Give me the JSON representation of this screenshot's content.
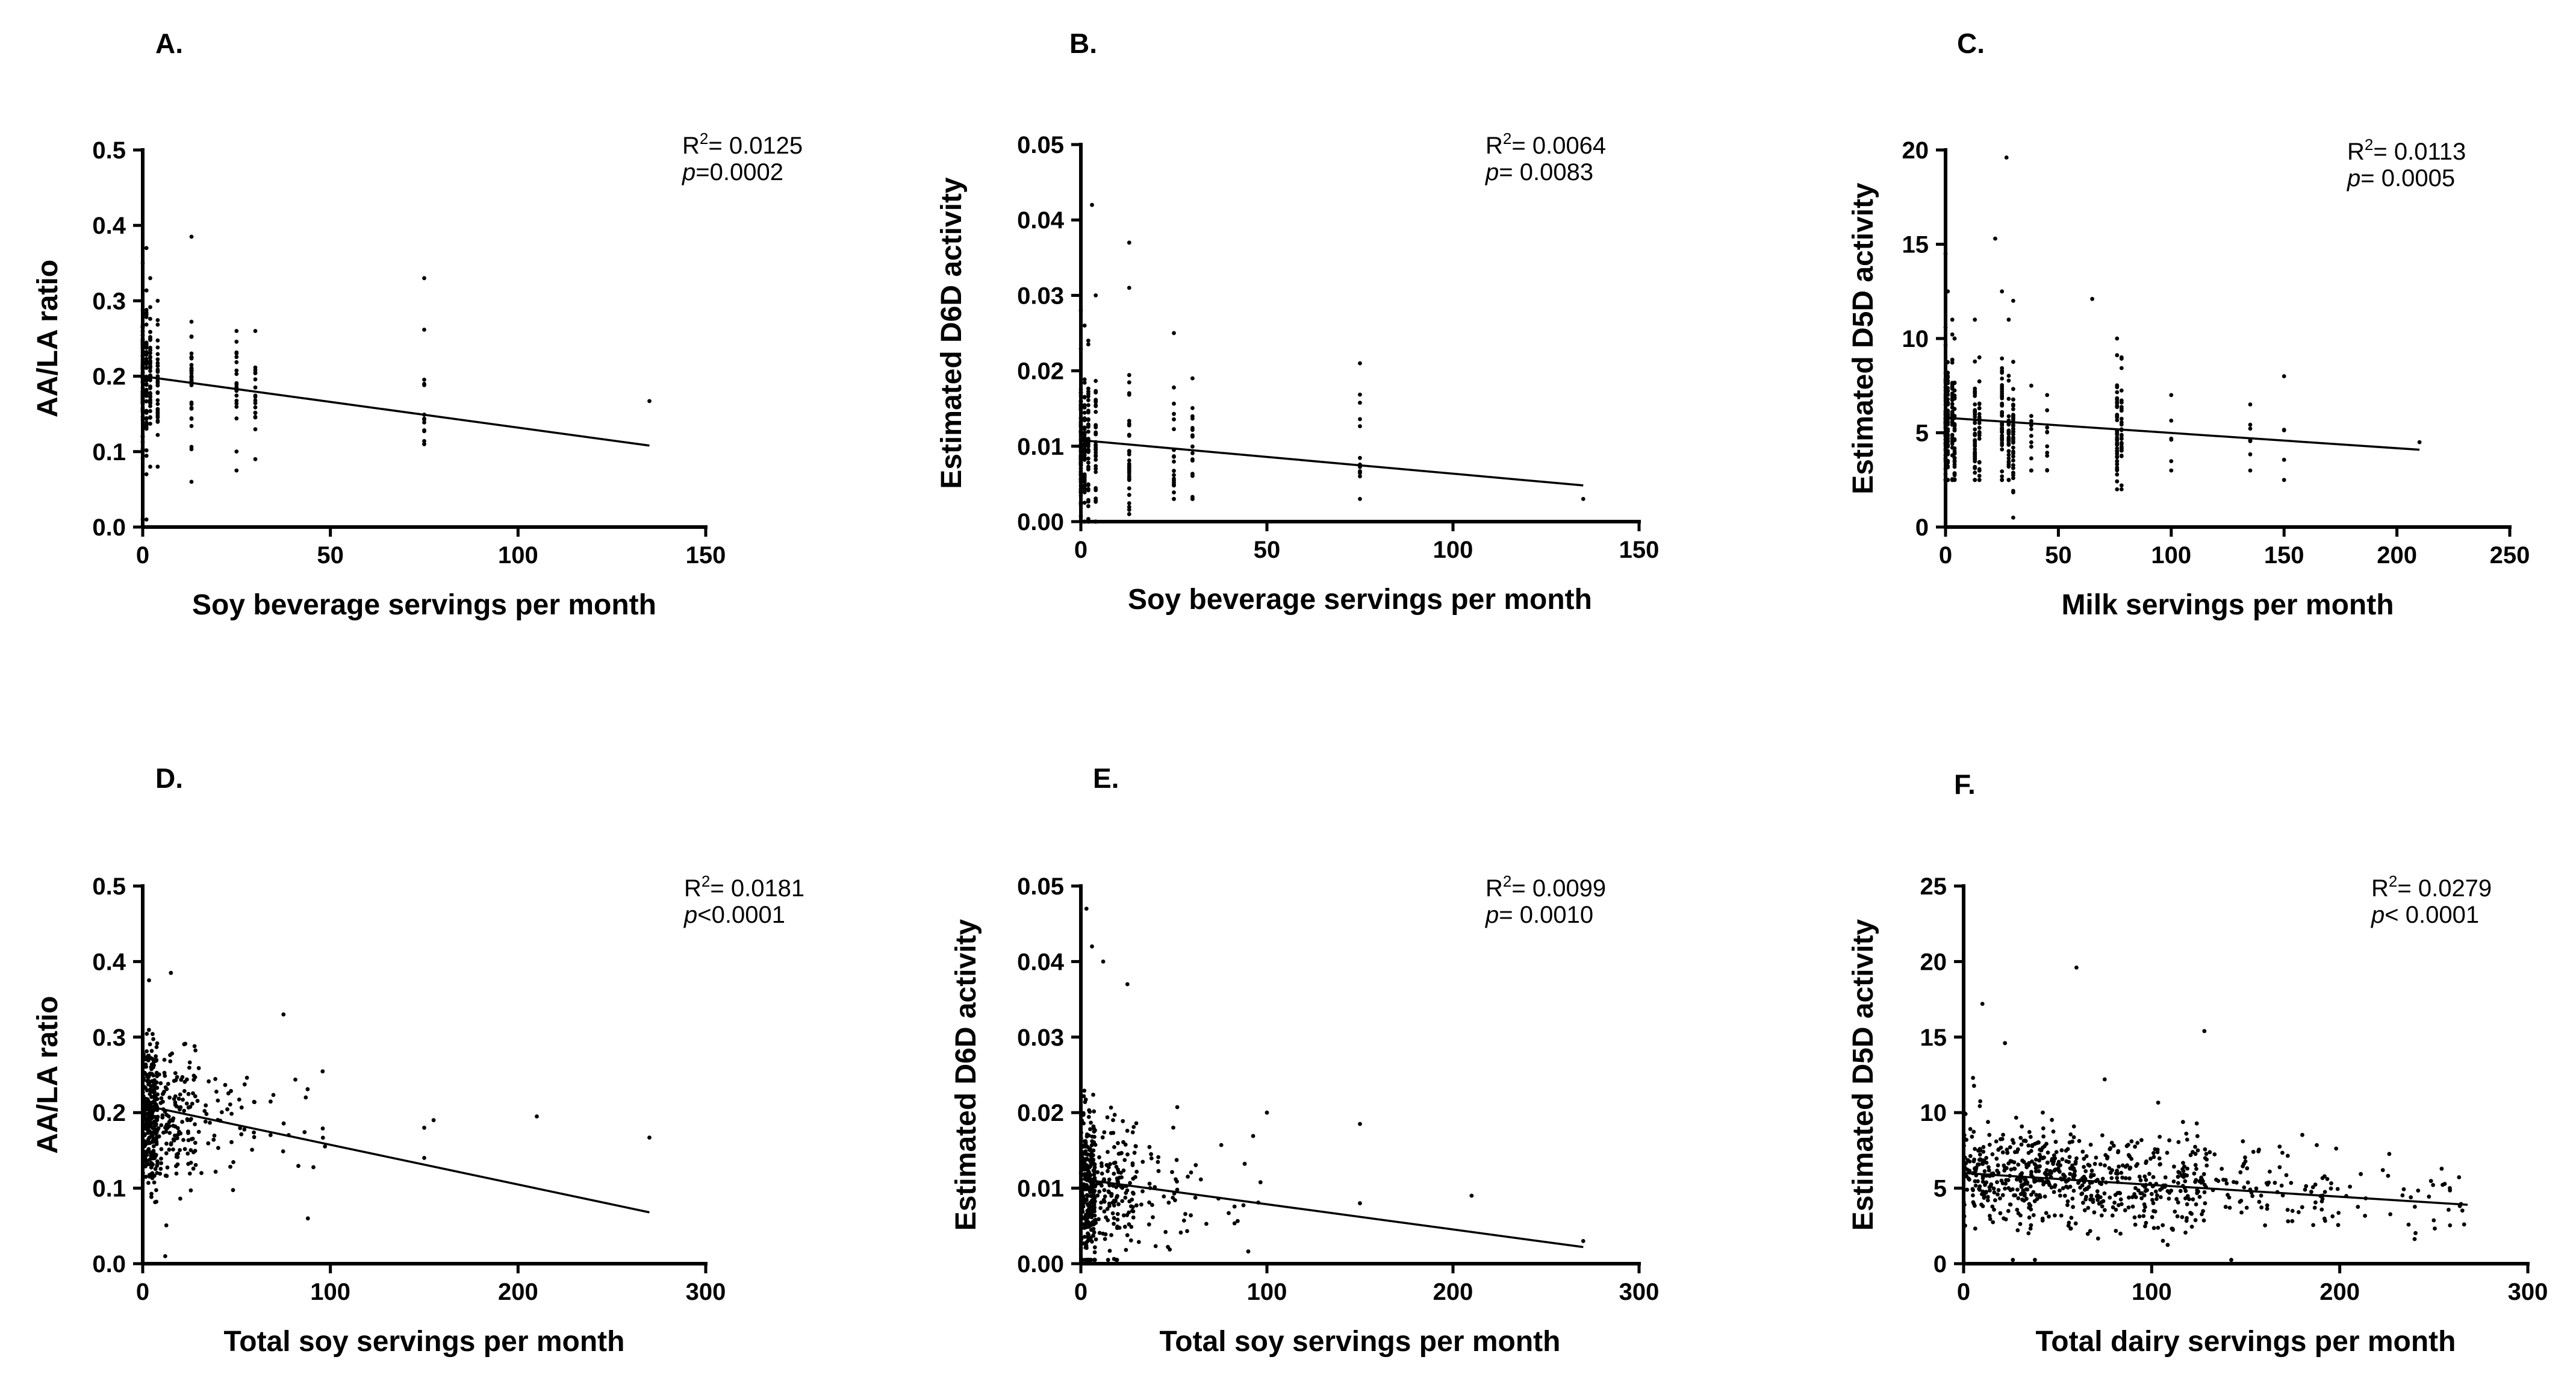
{
  "chart_data": [
    {
      "panel": "A.",
      "type": "scatter",
      "xlabel": "Soy beverage servings per month",
      "ylabel": "AA/LA ratio",
      "xlim": [
        0,
        150
      ],
      "ylim": [
        0,
        0.5
      ],
      "xticks": [
        0,
        50,
        100,
        150
      ],
      "yticks": [
        0.0,
        0.1,
        0.2,
        0.3,
        0.4,
        0.5
      ],
      "xtick_labels": [
        "0",
        "50",
        "100",
        "150"
      ],
      "ytick_labels": [
        "0.0",
        "0.1",
        "0.2",
        "0.3",
        "0.4",
        "0.5"
      ],
      "r2_label": "R",
      "r2_value": "= 0.0125",
      "p_label": "p",
      "p_value": "=0.0002",
      "fit": {
        "x": [
          0,
          135
        ],
        "y": [
          0.2,
          0.108
        ]
      },
      "columns": [
        [
          0,
          0.01,
          0.35,
          0.2,
          0.045,
          80
        ],
        [
          1,
          0.07,
          0.37,
          0.2,
          0.045,
          50
        ],
        [
          2,
          0.08,
          0.33,
          0.2,
          0.045,
          45
        ],
        [
          4,
          0.08,
          0.3,
          0.195,
          0.04,
          40
        ],
        [
          13,
          0.06,
          0.385,
          0.19,
          0.04,
          35
        ],
        [
          25,
          0.075,
          0.26,
          0.185,
          0.035,
          22
        ],
        [
          30,
          0.09,
          0.26,
          0.18,
          0.035,
          18
        ],
        [
          75,
          0.11,
          0.33,
          0.165,
          0.03,
          14
        ]
      ],
      "extra_points": [
        [
          135,
          0.167
        ],
        [
          1,
          0.01
        ]
      ]
    },
    {
      "panel": "B.",
      "type": "scatter",
      "xlabel": "Soy beverage servings per month",
      "ylabel": "Estimated D6D activity",
      "xlim": [
        0,
        150
      ],
      "ylim": [
        0,
        0.05
      ],
      "xticks": [
        0,
        50,
        100,
        150
      ],
      "yticks": [
        0.0,
        0.01,
        0.02,
        0.03,
        0.04,
        0.05
      ],
      "xtick_labels": [
        "0",
        "50",
        "100",
        "150"
      ],
      "ytick_labels": [
        "0.00",
        "0.01",
        "0.02",
        "0.03",
        "0.04",
        "0.05"
      ],
      "r2_label": "R",
      "r2_value": "= 0.0064",
      "p_label": "p",
      "p_value": "= 0.0083",
      "fit": {
        "x": [
          0,
          135
        ],
        "y": [
          0.0108,
          0.0048
        ]
      },
      "columns": [
        [
          0,
          0.0,
          0.028,
          0.01,
          0.005,
          80
        ],
        [
          1,
          0.0,
          0.026,
          0.01,
          0.005,
          50
        ],
        [
          2,
          0.0,
          0.024,
          0.01,
          0.005,
          45
        ],
        [
          4,
          0.0,
          0.03,
          0.01,
          0.005,
          40
        ],
        [
          13,
          0.001,
          0.031,
          0.009,
          0.005,
          35
        ],
        [
          25,
          0.003,
          0.025,
          0.009,
          0.004,
          22
        ],
        [
          30,
          0.003,
          0.019,
          0.009,
          0.004,
          18
        ],
        [
          75,
          0.003,
          0.021,
          0.009,
          0.004,
          14
        ]
      ],
      "extra_points": [
        [
          3,
          0.042
        ],
        [
          13,
          0.037
        ],
        [
          135,
          0.003
        ]
      ]
    },
    {
      "panel": "C.",
      "type": "scatter",
      "xlabel": "Milk servings per month",
      "ylabel": "Estimated D5D activity",
      "xlim": [
        0,
        250
      ],
      "ylim": [
        0,
        20
      ],
      "xticks": [
        0,
        50,
        100,
        150,
        200,
        250
      ],
      "yticks": [
        0,
        5,
        10,
        15,
        20
      ],
      "xtick_labels": [
        "0",
        "50",
        "100",
        "150",
        "200",
        "250"
      ],
      "ytick_labels": [
        "0",
        "5",
        "10",
        "15",
        "20"
      ],
      "r2_label": "R",
      "r2_value": "= 0.0113",
      "p_label": "p",
      "p_value": "= 0.0005",
      "fit": {
        "x": [
          0,
          210
        ],
        "y": [
          5.8,
          4.1
        ]
      },
      "columns": [
        [
          0,
          2.5,
          14.5,
          5.5,
          2.0,
          60
        ],
        [
          1,
          2.5,
          12.5,
          5.5,
          2.0,
          60
        ],
        [
          3,
          2.5,
          11,
          5.5,
          1.8,
          50
        ],
        [
          4,
          2.5,
          10,
          5.4,
          1.8,
          35
        ],
        [
          13,
          2.5,
          11,
          5.3,
          1.8,
          45
        ],
        [
          15,
          2.5,
          9,
          5.2,
          1.6,
          30
        ],
        [
          25,
          2.5,
          12.5,
          5.2,
          1.7,
          45
        ],
        [
          28,
          2.5,
          11,
          5.1,
          1.6,
          35
        ],
        [
          30,
          0.5,
          12,
          5.0,
          1.7,
          40
        ],
        [
          38,
          3,
          7.5,
          5.0,
          1.2,
          12
        ],
        [
          45,
          3,
          7,
          5.0,
          1.2,
          10
        ],
        [
          76,
          2,
          10,
          5.0,
          1.4,
          45
        ],
        [
          78,
          2,
          9,
          5.0,
          1.3,
          30
        ],
        [
          100,
          3,
          7,
          5.0,
          1.0,
          6
        ],
        [
          135,
          3,
          6.5,
          4.5,
          1.0,
          8
        ],
        [
          150,
          2.5,
          8,
          4.5,
          1.2,
          5
        ]
      ],
      "extra_points": [
        [
          27,
          19.6
        ],
        [
          210,
          4.5
        ],
        [
          22,
          15.3
        ],
        [
          65,
          12.1
        ]
      ]
    },
    {
      "panel": "D.",
      "type": "scatter",
      "xlabel": "Total soy servings per month",
      "ylabel": "AA/LA ratio",
      "xlim": [
        0,
        300
      ],
      "ylim": [
        0,
        0.5
      ],
      "xticks": [
        0,
        100,
        200,
        300
      ],
      "yticks": [
        0.0,
        0.1,
        0.2,
        0.3,
        0.4,
        0.5
      ],
      "xtick_labels": [
        "0",
        "100",
        "200",
        "300"
      ],
      "ytick_labels": [
        "0.0",
        "0.1",
        "0.2",
        "0.3",
        "0.4",
        "0.5"
      ],
      "r2_label": "R",
      "r2_value": "= 0.0181",
      "p_label": "p",
      "p_value": "<0.0001",
      "fit": {
        "x": [
          0,
          270
        ],
        "y": [
          0.21,
          0.068
        ]
      },
      "cloud": [
        [
          0,
          8,
          0.2,
          0.045,
          280
        ],
        [
          8,
          30,
          0.19,
          0.045,
          140
        ],
        [
          30,
          60,
          0.18,
          0.04,
          40
        ],
        [
          60,
          100,
          0.17,
          0.04,
          16
        ]
      ],
      "extra_points": [
        [
          150,
          0.18
        ],
        [
          150,
          0.14
        ],
        [
          155,
          0.19
        ],
        [
          210,
          0.195
        ],
        [
          270,
          0.167
        ],
        [
          75,
          0.33
        ],
        [
          88,
          0.06
        ],
        [
          15,
          0.385
        ],
        [
          12,
          0.01
        ]
      ]
    },
    {
      "panel": "E.",
      "type": "scatter",
      "xlabel": "Total soy servings per month",
      "ylabel": "Estimated D6D activity",
      "xlim": [
        0,
        300
      ],
      "ylim": [
        0,
        0.05
      ],
      "xticks": [
        0,
        100,
        200,
        300
      ],
      "yticks": [
        0.0,
        0.01,
        0.02,
        0.03,
        0.04,
        0.05
      ],
      "xtick_labels": [
        "0",
        "100",
        "200",
        "300"
      ],
      "ytick_labels": [
        "0.00",
        "0.01",
        "0.02",
        "0.03",
        "0.04",
        "0.05"
      ],
      "r2_label": "R",
      "r2_value": "= 0.0099",
      "p_label": "p",
      "p_value": "= 0.0010",
      "fit": {
        "x": [
          0,
          270
        ],
        "y": [
          0.0112,
          0.0022
        ]
      },
      "cloud": [
        [
          0,
          8,
          0.0095,
          0.005,
          280
        ],
        [
          8,
          30,
          0.0095,
          0.005,
          140
        ],
        [
          30,
          60,
          0.009,
          0.0045,
          40
        ],
        [
          60,
          100,
          0.009,
          0.004,
          16
        ]
      ],
      "extra_points": [
        [
          3,
          0.047
        ],
        [
          6,
          0.042
        ],
        [
          12,
          0.04
        ],
        [
          25,
          0.037
        ],
        [
          150,
          0.0185
        ],
        [
          210,
          0.009
        ],
        [
          270,
          0.003
        ],
        [
          150,
          0.008
        ],
        [
          100,
          0.02
        ]
      ]
    },
    {
      "panel": "F.",
      "type": "scatter",
      "xlabel": "Total dairy servings per month",
      "ylabel": "Estimated D5D activity",
      "xlim": [
        0,
        300
      ],
      "ylim": [
        0,
        25
      ],
      "xticks": [
        0,
        100,
        200,
        300
      ],
      "yticks": [
        0,
        5,
        10,
        15,
        20,
        25
      ],
      "xtick_labels": [
        "0",
        "100",
        "200",
        "300"
      ],
      "ytick_labels": [
        "0",
        "5",
        "10",
        "15",
        "20",
        "25"
      ],
      "r2_label": "R",
      "r2_value": "= 0.0279",
      "p_label": "p",
      "p_value": "< 0.0001",
      "fit": {
        "x": [
          0,
          268
        ],
        "y": [
          6.0,
          3.9
        ]
      },
      "cloud": [
        [
          0,
          60,
          5.8,
          1.8,
          380
        ],
        [
          60,
          130,
          5.3,
          1.7,
          280
        ],
        [
          130,
          200,
          5.0,
          1.5,
          90
        ],
        [
          200,
          268,
          4.6,
          1.3,
          35
        ]
      ],
      "extra_points": [
        [
          60,
          19.6
        ],
        [
          10,
          17.2
        ],
        [
          128,
          15.4
        ],
        [
          22,
          14.6
        ],
        [
          75,
          12.2
        ],
        [
          5,
          12.3
        ]
      ]
    }
  ]
}
